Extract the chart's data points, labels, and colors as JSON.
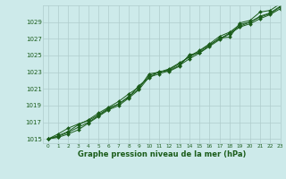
{
  "xlabel": "Graphe pression niveau de la mer (hPa)",
  "background_color": "#cdeaea",
  "grid_color": "#b0cccc",
  "line_color": "#1a5c1a",
  "xlim": [
    -0.5,
    23
  ],
  "ylim": [
    1014.5,
    1031.0
  ],
  "yticks": [
    1015,
    1017,
    1019,
    1021,
    1023,
    1025,
    1027,
    1029
  ],
  "xticks": [
    0,
    1,
    2,
    3,
    4,
    5,
    6,
    7,
    8,
    9,
    10,
    11,
    12,
    13,
    14,
    15,
    16,
    17,
    18,
    19,
    20,
    21,
    22,
    23
  ],
  "series": [
    [
      1015.0,
      1015.6,
      1016.3,
      1016.8,
      1017.2,
      1017.9,
      1018.7,
      1019.2,
      1020.0,
      1021.4,
      1022.3,
      1023.1,
      1023.1,
      1023.7,
      1025.1,
      1025.3,
      1026.2,
      1027.1,
      1027.2,
      1028.9,
      1029.2,
      1030.2,
      1030.4,
      1031.2
    ],
    [
      1015.0,
      1015.4,
      1015.9,
      1016.7,
      1017.3,
      1018.1,
      1018.8,
      1019.5,
      1020.4,
      1021.2,
      1022.6,
      1023.0,
      1023.3,
      1024.0,
      1024.9,
      1025.6,
      1026.4,
      1027.3,
      1027.8,
      1028.7,
      1029.0,
      1029.7,
      1030.1,
      1030.9
    ],
    [
      1015.0,
      1015.2,
      1015.6,
      1016.1,
      1016.9,
      1017.7,
      1018.5,
      1019.0,
      1019.9,
      1020.9,
      1022.4,
      1022.8,
      1023.2,
      1023.8,
      1024.6,
      1025.3,
      1026.1,
      1026.9,
      1027.6,
      1028.4,
      1028.8,
      1029.4,
      1029.9,
      1030.6
    ],
    [
      1015.0,
      1015.3,
      1015.8,
      1016.4,
      1017.0,
      1017.8,
      1018.6,
      1019.2,
      1020.1,
      1021.0,
      1022.8,
      1023.0,
      1023.4,
      1024.1,
      1024.8,
      1025.5,
      1026.3,
      1027.0,
      1027.7,
      1028.5,
      1029.0,
      1029.6,
      1030.0,
      1030.8
    ]
  ]
}
